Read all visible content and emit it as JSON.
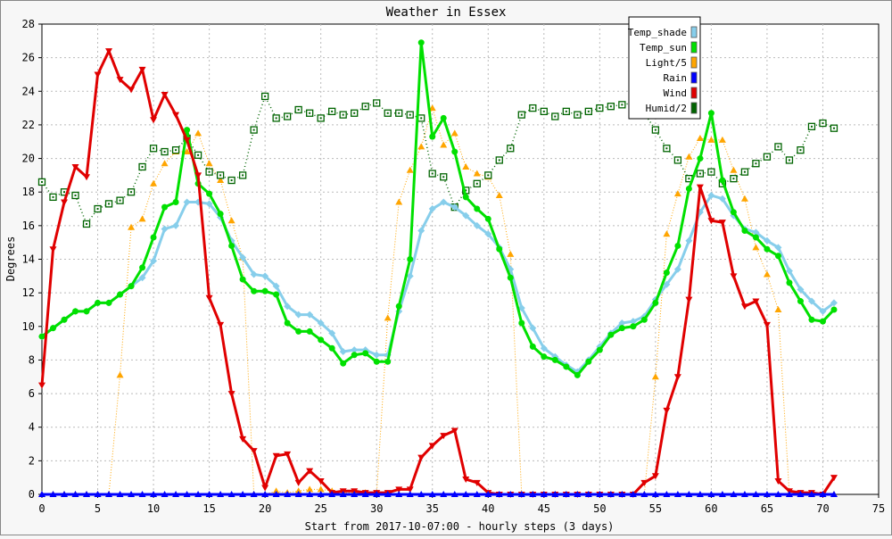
{
  "chart_data": {
    "type": "line",
    "title": "Weather in Essex",
    "xlabel": "Start from 2017-10-07:00 - hourly steps (3 days)",
    "ylabel": "Degrees",
    "xlim": [
      0,
      75
    ],
    "ylim": [
      0,
      28
    ],
    "x_ticks": [
      0,
      5,
      10,
      15,
      20,
      25,
      30,
      35,
      40,
      45,
      50,
      55,
      60,
      65,
      70,
      75
    ],
    "y_ticks": [
      0,
      2,
      4,
      6,
      8,
      10,
      12,
      14,
      16,
      18,
      20,
      22,
      24,
      26,
      28
    ],
    "grid": true,
    "legend_position": "top-right",
    "series": [
      {
        "name": "Temp_shade",
        "color": "#87ceeb",
        "values": [
          9.4,
          9.9,
          10.4,
          10.9,
          10.9,
          11.4,
          11.4,
          11.9,
          12.4,
          12.9,
          13.9,
          15.8,
          16.0,
          17.4,
          17.4,
          17.3,
          16.5,
          15.1,
          14.1,
          13.1,
          13.0,
          12.4,
          11.2,
          10.7,
          10.7,
          10.2,
          9.6,
          8.5,
          8.6,
          8.6,
          8.3,
          8.3,
          10.9,
          13.0,
          15.7,
          17.0,
          17.4,
          17.1,
          16.6,
          16.0,
          15.5,
          14.7,
          13.4,
          11.1,
          9.9,
          8.7,
          8.2,
          7.7,
          7.3,
          8.0,
          8.8,
          9.6,
          10.2,
          10.3,
          10.6,
          11.6,
          12.5,
          13.4,
          15.1,
          16.8,
          17.8,
          17.6,
          16.6,
          15.8,
          15.6,
          15.1,
          14.7,
          13.3,
          12.2,
          11.5,
          10.9,
          11.4
        ]
      },
      {
        "name": "Temp_sun",
        "color": "#00e000",
        "values": [
          9.4,
          9.9,
          10.4,
          10.9,
          10.9,
          11.4,
          11.4,
          11.9,
          12.4,
          13.5,
          15.3,
          17.1,
          17.4,
          21.7,
          18.5,
          17.9,
          16.7,
          14.8,
          12.8,
          12.1,
          12.1,
          11.9,
          10.2,
          9.7,
          9.7,
          9.2,
          8.7,
          7.8,
          8.3,
          8.4,
          7.9,
          7.9,
          11.2,
          14.0,
          26.9,
          21.3,
          22.4,
          20.4,
          17.7,
          17.0,
          16.4,
          14.6,
          12.9,
          10.2,
          8.8,
          8.2,
          8.0,
          7.6,
          7.1,
          7.9,
          8.6,
          9.5,
          9.9,
          10.0,
          10.4,
          11.4,
          13.2,
          14.8,
          18.2,
          20.0,
          22.7,
          18.7,
          16.8,
          15.7,
          15.3,
          14.6,
          14.2,
          12.6,
          11.5,
          10.4,
          10.3,
          11.0
        ]
      },
      {
        "name": "Light/5",
        "color": "#ffa500",
        "values": [
          0,
          0,
          0,
          0,
          0,
          0,
          0,
          7.1,
          15.9,
          16.4,
          18.5,
          19.7,
          20.4,
          20.4,
          21.5,
          19.7,
          18.7,
          16.3,
          14.1,
          0,
          0,
          0.2,
          0.1,
          0.2,
          0.3,
          0.3,
          0.2,
          0.1,
          0.1,
          0.1,
          0,
          10.5,
          17.4,
          19.3,
          20.7,
          23.0,
          20.8,
          21.5,
          19.5,
          19.1,
          18.9,
          17.8,
          14.3,
          0,
          0,
          0,
          0,
          0,
          0,
          0,
          0,
          0,
          0,
          0,
          0,
          7.0,
          15.5,
          17.9,
          20.1,
          21.2,
          21.1,
          21.1,
          19.3,
          17.6,
          14.7,
          13.1,
          11.0,
          0,
          0,
          0,
          0,
          0
        ]
      },
      {
        "name": "Rain",
        "color": "#0000ff",
        "values": [
          0,
          0,
          0,
          0,
          0,
          0,
          0,
          0,
          0,
          0,
          0,
          0,
          0,
          0,
          0,
          0,
          0,
          0,
          0,
          0,
          0,
          0,
          0,
          0,
          0,
          0,
          0,
          0,
          0,
          0,
          0,
          0,
          0,
          0,
          0,
          0,
          0,
          0,
          0,
          0,
          0,
          0,
          0,
          0,
          0,
          0,
          0,
          0,
          0,
          0,
          0,
          0,
          0,
          0,
          0,
          0,
          0,
          0,
          0,
          0,
          0,
          0,
          0,
          0,
          0,
          0,
          0,
          0,
          0,
          0,
          0,
          0
        ]
      },
      {
        "name": "Wind",
        "color": "#e00000",
        "values": [
          6.5,
          14.6,
          17.4,
          19.5,
          18.9,
          25.0,
          26.4,
          24.7,
          24.1,
          25.3,
          22.3,
          23.8,
          22.6,
          21.1,
          19.0,
          11.7,
          10.1,
          6.0,
          3.3,
          2.6,
          0.4,
          2.3,
          2.4,
          0.7,
          1.4,
          0.8,
          0.1,
          0.2,
          0.2,
          0.1,
          0.1,
          0.1,
          0.3,
          0.3,
          2.2,
          2.9,
          3.5,
          3.8,
          0.9,
          0.7,
          0.1,
          0,
          0,
          0,
          0,
          0,
          0,
          0,
          0,
          0,
          0,
          0,
          0,
          0,
          0.7,
          1.1,
          5.0,
          7.0,
          11.6,
          18.3,
          16.3,
          16.2,
          13.0,
          11.2,
          11.5,
          10.1,
          0.8,
          0.2,
          0.1,
          0.1,
          0,
          1.0
        ]
      },
      {
        "name": "Humid/2",
        "color": "#006400",
        "values": [
          18.6,
          17.7,
          18.0,
          17.8,
          16.1,
          17.0,
          17.3,
          17.5,
          18.0,
          19.5,
          20.6,
          20.4,
          20.5,
          21.2,
          20.2,
          19.2,
          19.0,
          18.7,
          19.0,
          21.7,
          23.7,
          22.4,
          22.5,
          22.9,
          22.7,
          22.4,
          22.8,
          22.6,
          22.7,
          23.1,
          23.3,
          22.7,
          22.7,
          22.6,
          22.4,
          19.1,
          18.9,
          17.1,
          18.1,
          18.5,
          19.0,
          19.9,
          20.6,
          22.6,
          23.0,
          22.8,
          22.5,
          22.8,
          22.6,
          22.8,
          23.0,
          23.1,
          23.2,
          23.3,
          22.7,
          21.7,
          20.6,
          19.9,
          18.8,
          19.1,
          19.2,
          18.5,
          18.8,
          19.2,
          19.7,
          20.1,
          20.7,
          19.9,
          20.5,
          21.9,
          22.1,
          21.8
        ]
      }
    ]
  }
}
